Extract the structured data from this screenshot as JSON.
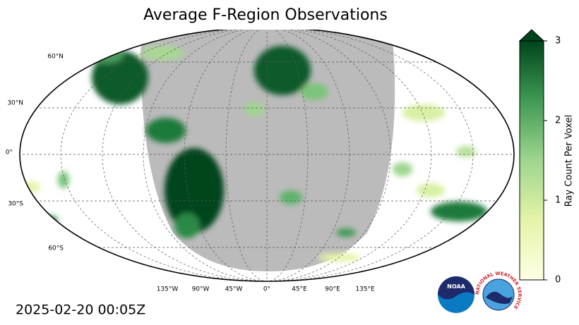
{
  "title": "Average F-Region Observations",
  "lat_labels": [
    "60°N",
    "30°N",
    "0°",
    "30°S",
    "60°S"
  ],
  "lon_labels": [
    "135°W",
    "90°W",
    "45°W",
    "0°",
    "45°E",
    "90°E",
    "135°E"
  ],
  "colorbar": {
    "label": "Ray Count Per Voxel",
    "lim": [
      0,
      3
    ],
    "ticks": [
      0,
      1,
      2,
      3
    ]
  },
  "timestamp": "2025-02-20 00:05Z",
  "logos": {
    "noaa": "NOAA",
    "nws": "NATIONAL WEATHER SERVICE"
  }
}
